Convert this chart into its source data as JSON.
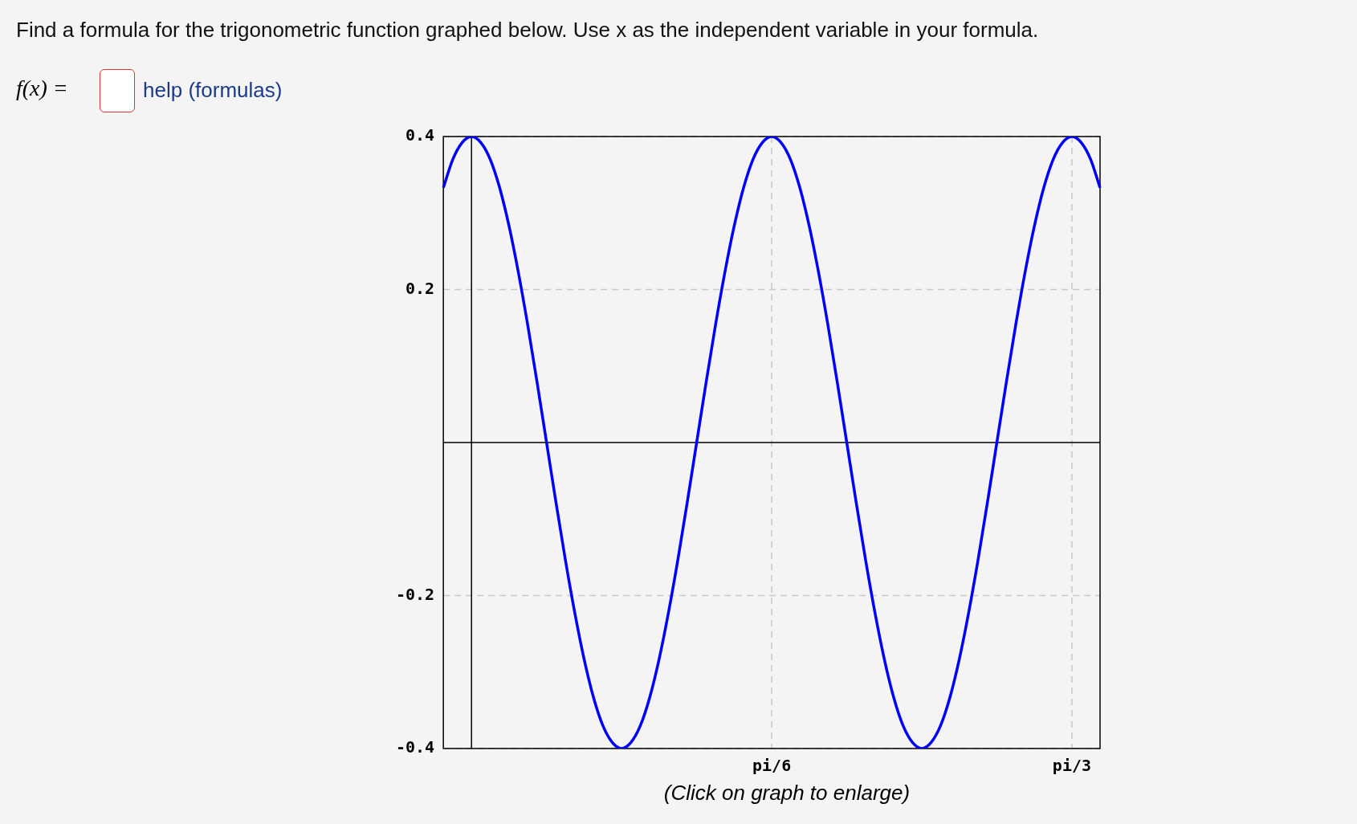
{
  "chart_data": {
    "type": "line",
    "title": "Find a formula for the trigonometric function graphed below. Use x as the independent variable in your formula.",
    "annotations": [
      "f(x) =",
      "help (formulas)",
      "(Click on graph to enlarge)"
    ],
    "categories": [
      null,
      null,
      null,
      null,
      null,
      null,
      null,
      null,
      null,
      null,
      null,
      null,
      null,
      null,
      null,
      null,
      null,
      null,
      null,
      null,
      null,
      null,
      null,
      null,
      null,
      null,
      null,
      null,
      null,
      null,
      null,
      null,
      null,
      null,
      null,
      "pi/6",
      null,
      null,
      null,
      null,
      null,
      null,
      null,
      null,
      null,
      null,
      null,
      null,
      null,
      null,
      null,
      null,
      null,
      null,
      null,
      null,
      null,
      null,
      null,
      null,
      null,
      null,
      null,
      null,
      null,
      null,
      null,
      "pi/3",
      null,
      null,
      null
    ],
    "series": [
      {
        "color": "#0000ff",
        "values": [
          0.333,
          0.37,
          0.392,
          0.4,
          0.392,
          0.37,
          0.333,
          0.283,
          0.222,
          0.153,
          0.078,
          0,
          -0.078,
          -0.153,
          -0.222,
          -0.283,
          -0.333,
          -0.37,
          -0.392,
          -0.4,
          -0.392,
          -0.37,
          -0.333,
          -0.283,
          -0.222,
          -0.153,
          -0.078,
          0,
          0.078,
          0.153,
          0.222,
          0.283,
          0.333,
          0.37,
          0.392,
          0.4,
          0.392,
          0.37,
          0.333,
          0.283,
          0.222,
          0.153,
          0.078,
          0,
          -0.078,
          -0.153,
          -0.222,
          -0.283,
          -0.333,
          -0.37,
          -0.392,
          -0.4,
          -0.392,
          -0.37,
          -0.333,
          -0.283,
          -0.222,
          -0.153,
          -0.078,
          0,
          0.078,
          0.153,
          0.222,
          0.283,
          0.333,
          0.37,
          0.392,
          0.4,
          0.392,
          0.37,
          0.333
        ]
      }
    ],
    "ylim": [
      -0.4,
      0.4
    ],
    "yticks": [
      -0.4,
      -0.2,
      0.2,
      0.4
    ],
    "grid": true,
    "legend": false,
    "marker": "none",
    "line_style": "solid"
  }
}
